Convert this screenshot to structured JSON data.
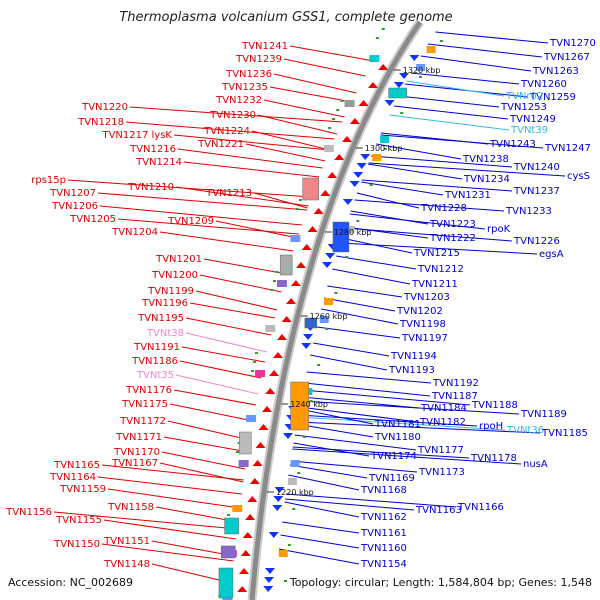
{
  "title": "Thermoplasma volcanium GSS1, complete genome",
  "footer": {
    "accession": "Accession: NC_002689",
    "topology": "Topology: circular; Length: 1,584,804 bp; Genes: 1,548"
  },
  "colors": {
    "reverse_strand_gene": "#dd0000",
    "forward_strand_gene": "#0000cc",
    "rna_gene": "#ee88cc",
    "rna_gene_forward": "#33bbdd",
    "backbone": "#999999"
  },
  "kbp_marks": [
    "1320 kbp",
    "1300 kbp",
    "1280 kbp",
    "1260 kbp",
    "1240 kbp",
    "1220 kbp"
  ],
  "left_labels": [
    {
      "text": "TVN1241",
      "type": "red"
    },
    {
      "text": "TVN1239",
      "type": "red"
    },
    {
      "text": "TVN1236",
      "type": "red"
    },
    {
      "text": "TVN1235",
      "type": "red"
    },
    {
      "text": "TVN1232",
      "type": "red"
    },
    {
      "text": "TVN1230",
      "type": "red"
    },
    {
      "text": "TVN1220",
      "type": "red"
    },
    {
      "text": "TVN1218",
      "type": "red"
    },
    {
      "text": "TVN1224",
      "type": "red"
    },
    {
      "text": "TVN1217 lysK",
      "type": "red"
    },
    {
      "text": "TVN1221",
      "type": "red"
    },
    {
      "text": "TVN1216",
      "type": "red"
    },
    {
      "text": "TVN1214",
      "type": "red"
    },
    {
      "text": "rps15p",
      "type": "red"
    },
    {
      "text": "TVN1210",
      "type": "red"
    },
    {
      "text": "TVN1213",
      "type": "red"
    },
    {
      "text": "TVN1207",
      "type": "red"
    },
    {
      "text": "TVN1206",
      "type": "red"
    },
    {
      "text": "TVN1205",
      "type": "red"
    },
    {
      "text": "TVN1209",
      "type": "red"
    },
    {
      "text": "TVN1204",
      "type": "red"
    },
    {
      "text": "TVN1201",
      "type": "red"
    },
    {
      "text": "TVN1200",
      "type": "red"
    },
    {
      "text": "TVN1199",
      "type": "red"
    },
    {
      "text": "TVN1196",
      "type": "red"
    },
    {
      "text": "TVN1195",
      "type": "red"
    },
    {
      "text": "TVNt38",
      "type": "pink"
    },
    {
      "text": "TVN1191",
      "type": "red"
    },
    {
      "text": "TVN1186",
      "type": "red"
    },
    {
      "text": "TVNt35",
      "type": "pink"
    },
    {
      "text": "TVN1176",
      "type": "red"
    },
    {
      "text": "TVN1175",
      "type": "red"
    },
    {
      "text": "TVN1172",
      "type": "red"
    },
    {
      "text": "TVN1171",
      "type": "red"
    },
    {
      "text": "TVN1170",
      "type": "red"
    },
    {
      "text": "TVN1167",
      "type": "red"
    },
    {
      "text": "TVN1165",
      "type": "red"
    },
    {
      "text": "TVN1164",
      "type": "red"
    },
    {
      "text": "TVN1159",
      "type": "red"
    },
    {
      "text": "TVN1158",
      "type": "red"
    },
    {
      "text": "TVN1156",
      "type": "red"
    },
    {
      "text": "TVN1155",
      "type": "red"
    },
    {
      "text": "TVN1151",
      "type": "red"
    },
    {
      "text": "TVN1150",
      "type": "red"
    },
    {
      "text": "TVN1148",
      "type": "red"
    }
  ],
  "right_labels": [
    {
      "text": "TVN1270",
      "type": "blue"
    },
    {
      "text": "TVN1267",
      "type": "blue"
    },
    {
      "text": "TVN1263",
      "type": "blue"
    },
    {
      "text": "TVN1260",
      "type": "blue"
    },
    {
      "text": "TVN1259",
      "type": "blue"
    },
    {
      "text": "TVNr02",
      "type": "cyan"
    },
    {
      "text": "TVN1253",
      "type": "blue"
    },
    {
      "text": "TVN1249",
      "type": "blue"
    },
    {
      "text": "TVNt39",
      "type": "cyan"
    },
    {
      "text": "TVN1243",
      "type": "blue"
    },
    {
      "text": "TVN1247",
      "type": "blue"
    },
    {
      "text": "TVN1238",
      "type": "blue"
    },
    {
      "text": "TVN1240",
      "type": "blue"
    },
    {
      "text": "cysS",
      "type": "blue"
    },
    {
      "text": "TVN1234",
      "type": "blue"
    },
    {
      "text": "TVN1237",
      "type": "blue"
    },
    {
      "text": "TVN1231",
      "type": "blue"
    },
    {
      "text": "TVN1228",
      "type": "blue"
    },
    {
      "text": "TVN1233",
      "type": "blue"
    },
    {
      "text": "TVN1223",
      "type": "blue"
    },
    {
      "text": "rpoK",
      "type": "blue"
    },
    {
      "text": "TVN1222",
      "type": "blue"
    },
    {
      "text": "TVN1226",
      "type": "blue"
    },
    {
      "text": "TVN1215",
      "type": "blue"
    },
    {
      "text": "egsA",
      "type": "blue"
    },
    {
      "text": "TVN1212",
      "type": "blue"
    },
    {
      "text": "TVN1211",
      "type": "blue"
    },
    {
      "text": "TVN1203",
      "type": "blue"
    },
    {
      "text": "TVN1202",
      "type": "blue"
    },
    {
      "text": "TVN1198",
      "type": "blue"
    },
    {
      "text": "TVN1197",
      "type": "blue"
    },
    {
      "text": "TVN1194",
      "type": "blue"
    },
    {
      "text": "TVN1193",
      "type": "blue"
    },
    {
      "text": "TVN1192",
      "type": "blue"
    },
    {
      "text": "TVN1187",
      "type": "blue"
    },
    {
      "text": "TVN1188",
      "type": "blue"
    },
    {
      "text": "TVN1184",
      "type": "blue"
    },
    {
      "text": "TVN1189",
      "type": "blue"
    },
    {
      "text": "TVN1182",
      "type": "blue"
    },
    {
      "text": "rpoH",
      "type": "blue"
    },
    {
      "text": "TVNt36",
      "type": "cyan"
    },
    {
      "text": "TVN1181",
      "type": "blue"
    },
    {
      "text": "TVN1185",
      "type": "blue"
    },
    {
      "text": "TVN1180",
      "type": "blue"
    },
    {
      "text": "TVN1177",
      "type": "blue"
    },
    {
      "text": "TVN1178",
      "type": "blue"
    },
    {
      "text": "TVN1174",
      "type": "blue"
    },
    {
      "text": "nusA",
      "type": "blue"
    },
    {
      "text": "TVN1173",
      "type": "blue"
    },
    {
      "text": "TVN1169",
      "type": "blue"
    },
    {
      "text": "TVN1168",
      "type": "blue"
    },
    {
      "text": "TVN1163",
      "type": "blue"
    },
    {
      "text": "TVN1166",
      "type": "blue"
    },
    {
      "text": "TVN1162",
      "type": "blue"
    },
    {
      "text": "TVN1161",
      "type": "blue"
    },
    {
      "text": "TVN1160",
      "type": "blue"
    },
    {
      "text": "TVN1154",
      "type": "blue"
    }
  ]
}
